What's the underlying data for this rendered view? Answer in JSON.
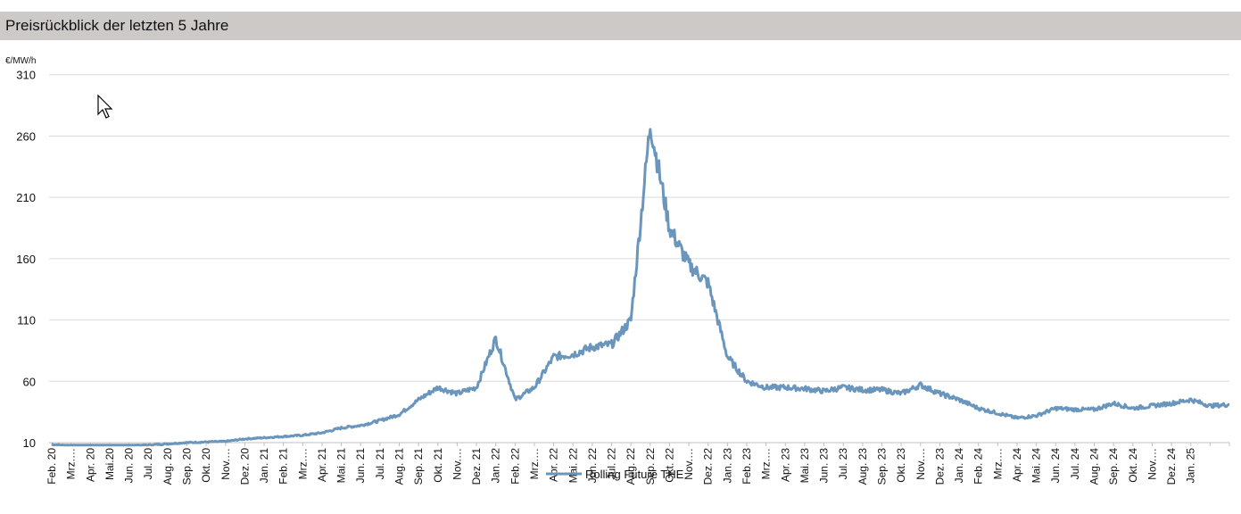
{
  "header": {
    "title": "Preisrückblick der letzten 5 Jahre"
  },
  "colors": {
    "header_bg": "#cdc9c7",
    "series": "#6a96bd",
    "grid": "#d9d9d9"
  },
  "chart_data": {
    "type": "line",
    "title": "",
    "unit_label": "€/MW/h",
    "ylim": [
      10,
      320
    ],
    "yticks": [
      10,
      60,
      110,
      160,
      210,
      260,
      310
    ],
    "grid": "horizontal",
    "legend": {
      "position": "bottom-center",
      "entries": [
        "Rolling Future THE"
      ]
    },
    "x_tick_labels": [
      "Feb. 20",
      "Mrz.…",
      "Apr. 20",
      "Mai.20",
      "Jun. 20",
      "Jul. 20",
      "Aug. 20",
      "Sep. 20",
      "Okt. 20",
      "Nov.…",
      "Dez. 20",
      "Jan. 21",
      "Feb. 21",
      "Mrz.…",
      "Apr. 21",
      "Mai. 21",
      "Jun. 21",
      "Jul. 21",
      "Aug. 21",
      "Sep. 21",
      "Okt. 21",
      "Nov.…",
      "Dez. 21",
      "Jan. 22",
      "Feb. 22",
      "Mrz.…",
      "Apr. 22",
      "Mai. 22",
      "Jun. 22",
      "Jul. 22",
      "Aug. 22",
      "Sep. 22",
      "Okt. 22",
      "Nov.…",
      "Dez. 22",
      "Jan. 23",
      "Feb. 23",
      "Mrz.…",
      "Apr. 23",
      "Mai. 23",
      "Jun. 23",
      "Jul. 23",
      "Aug. 23",
      "Sep. 23",
      "Okt. 23",
      "Nov.…",
      "Dez. 23",
      "Jan. 24",
      "Feb. 24",
      "Mrz.…",
      "Apr. 24",
      "Mai. 24",
      "Jun. 24",
      "Jul. 24",
      "Aug. 24",
      "Sep. 24",
      "Okt. 24",
      "Nov.…",
      "Dez. 24",
      "Jan. 25"
    ],
    "series": [
      {
        "name": "Rolling Future THE",
        "x": [
          "2020-02",
          "2020-03",
          "2020-04",
          "2020-05",
          "2020-06",
          "2020-07",
          "2020-08",
          "2020-09",
          "2020-10",
          "2020-11",
          "2020-12",
          "2021-01",
          "2021-02",
          "2021-03",
          "2021-04",
          "2021-05",
          "2021-06",
          "2021-07",
          "2021-08",
          "2021-09",
          "2021-10",
          "2021-11",
          "2021-12",
          "2022-01",
          "2022-02",
          "2022-03",
          "2022-04",
          "2022-05",
          "2022-06",
          "2022-07",
          "2022-08",
          "2022-09",
          "2022-10",
          "2022-11",
          "2022-12",
          "2023-01",
          "2023-02",
          "2023-03",
          "2023-04",
          "2023-05",
          "2023-06",
          "2023-07",
          "2023-08",
          "2023-09",
          "2023-10",
          "2023-11",
          "2023-12",
          "2024-01",
          "2024-02",
          "2024-03",
          "2024-04",
          "2024-05",
          "2024-06",
          "2024-07",
          "2024-08",
          "2024-09",
          "2024-10",
          "2024-11",
          "2024-12",
          "2025-01",
          "2025-02",
          "2025-03"
        ],
        "values": [
          8.5,
          7.5,
          7,
          7,
          7.5,
          8,
          9,
          10,
          10.5,
          11,
          13,
          14,
          15,
          16,
          18,
          22,
          24,
          28,
          33,
          45,
          55,
          50,
          55,
          95,
          45,
          55,
          80,
          82,
          88,
          90,
          110,
          270,
          185,
          155,
          140,
          80,
          60,
          55,
          55,
          54,
          52,
          55,
          53,
          53,
          50,
          57,
          50,
          45,
          38,
          34,
          30,
          32,
          38,
          37,
          37,
          42,
          38,
          40,
          42,
          45,
          40,
          41
        ]
      }
    ]
  }
}
